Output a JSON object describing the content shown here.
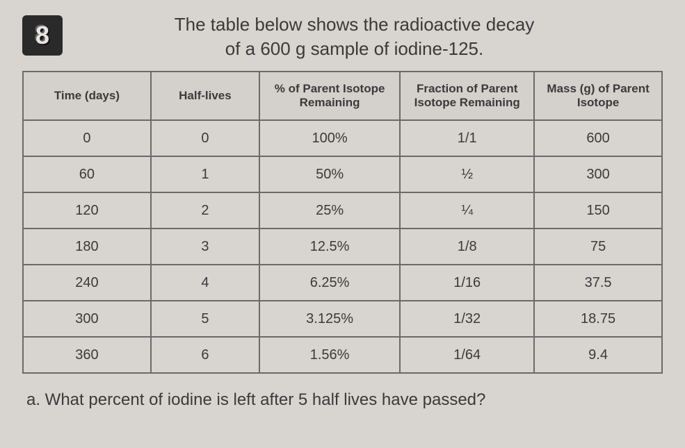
{
  "badge": "8",
  "title_line1": "The table below shows the radioactive decay",
  "title_line2": "of a 600 g sample of iodine-125.",
  "table": {
    "columns": [
      "Time (days)",
      "Half-lives",
      "% of Parent Isotope Remaining",
      "Fraction of Parent Isotope Remaining",
      "Mass (g) of Parent Isotope"
    ],
    "rows": [
      {
        "time": "0",
        "halflives": "0",
        "percent": "100%",
        "fraction": "1/1",
        "mass": "600"
      },
      {
        "time": "60",
        "halflives": "1",
        "percent": "50%",
        "fraction": "½",
        "mass": "300"
      },
      {
        "time": "120",
        "halflives": "2",
        "percent": "25%",
        "fraction": "¼",
        "mass": "150"
      },
      {
        "time": "180",
        "halflives": "3",
        "percent": "12.5%",
        "fraction": "1/8",
        "mass": "75"
      },
      {
        "time": "240",
        "halflives": "4",
        "percent": "6.25%",
        "fraction": "1/16",
        "mass": "37.5"
      },
      {
        "time": "300",
        "halflives": "5",
        "percent": "3.125%",
        "fraction": "1/32",
        "mass": "18.75"
      },
      {
        "time": "360",
        "halflives": "6",
        "percent": "1.56%",
        "fraction": "1/64",
        "mass": "9.4"
      }
    ]
  },
  "question": "a. What percent of iodine is left after 5 half lives have passed?"
}
